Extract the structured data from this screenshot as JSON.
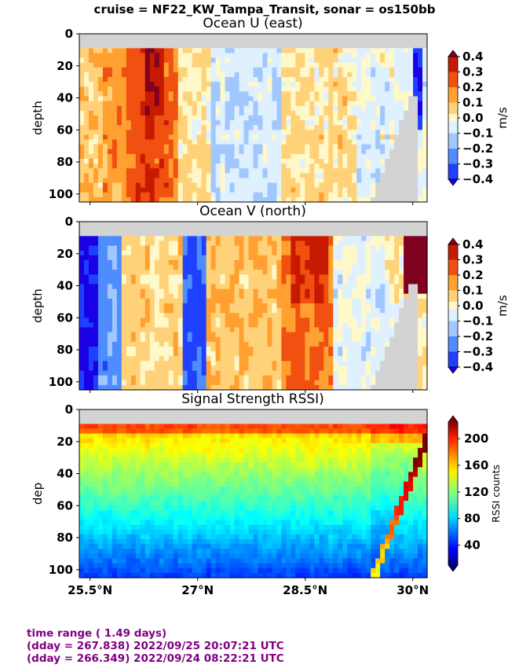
{
  "suptitle": "cruise = NF22_KW_Tampa_Transit,  sonar = os150bb",
  "chart_data": [
    {
      "type": "heatmap",
      "title": "Ocean U (east)",
      "ylabel": "depth",
      "ylim": [
        105,
        0
      ],
      "yticks": [
        "0",
        "20",
        "40",
        "60",
        "80",
        "100"
      ],
      "colorbar": {
        "label": "m/s",
        "ticks": [
          "0.4",
          "0.3",
          "0.2",
          "0.1",
          "0.0",
          "−0.1",
          "−0.2",
          "−0.3",
          "−0.4"
        ],
        "range": [
          -0.4,
          0.4
        ]
      },
      "field": "u"
    },
    {
      "type": "heatmap",
      "title": "Ocean V (north)",
      "ylabel": "depth",
      "ylim": [
        105,
        0
      ],
      "yticks": [
        "0",
        "20",
        "40",
        "60",
        "80",
        "100"
      ],
      "colorbar": {
        "label": "m/s",
        "ticks": [
          "0.4",
          "0.3",
          "0.2",
          "0.1",
          "0.0",
          "−0.1",
          "−0.2",
          "−0.3",
          "−0.4"
        ],
        "range": [
          -0.4,
          0.4
        ]
      },
      "field": "v"
    },
    {
      "type": "heatmap",
      "title": "Signal Strength RSSI)",
      "ylabel": "dep",
      "ylim": [
        105,
        0
      ],
      "yticks": [
        "0",
        "20",
        "40",
        "60",
        "80",
        "100"
      ],
      "xticks": [
        "25.5°N",
        "27°N",
        "28.5°N",
        "30°N"
      ],
      "xtick_values": [
        25.5,
        27.0,
        28.5,
        30.0
      ],
      "xlim": [
        25.35,
        30.2
      ],
      "colorbar": {
        "label": "RSSI counts",
        "ticks": [
          "200",
          "160",
          "120",
          "80",
          "40"
        ],
        "tick_values": [
          200,
          160,
          120,
          80,
          40
        ],
        "range": [
          10,
          225
        ]
      },
      "field": "rssi"
    }
  ],
  "footer": {
    "line1": "time range ( 1.49 days)",
    "line2": "(dday = 267.838) 2022/09/25 20:07:21 UTC",
    "line3": "(dday = 266.349) 2022/09/24 08:22:21 UTC"
  },
  "colors": {
    "footer_text": "#800080",
    "nodata": "#d3d3d3",
    "vel_levels": [
      "#1a00e6",
      "#1f40ff",
      "#4f8cff",
      "#a0c8ff",
      "#dff0ff",
      "#fff8c8",
      "#ffd27a",
      "#ffa030",
      "#f05010",
      "#c81a00",
      "#800020"
    ]
  }
}
